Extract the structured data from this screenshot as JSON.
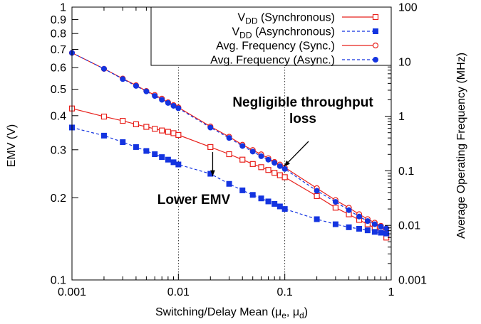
{
  "chart_data": {
    "type": "line",
    "xlabel": "Switching/Delay Mean (μe, μd)",
    "ylabel": "EMV (V)",
    "y2label": "Average Operating Frequency (MHz)",
    "x_scale": "log",
    "y_scale": "log",
    "y2_scale": "log",
    "xlim": [
      0.001,
      1
    ],
    "ylim": [
      0.1,
      1
    ],
    "y2lim": [
      0.001,
      100
    ],
    "x_ticks": [
      "0.001",
      "0.01",
      "0.1",
      "1"
    ],
    "y_ticks": [
      "0.1",
      "0.2",
      "0.3",
      "0.4",
      "0.5",
      "0.6",
      "0.7",
      "0.8",
      "0.9",
      "1"
    ],
    "y2_ticks": [
      "0.001",
      "0.01",
      "0.1",
      "1",
      "10",
      "100"
    ],
    "grid": "vertical dotted lines at 0.01 and 0.1",
    "legend_position": "top-right",
    "series": [
      {
        "name": "VDD (Synchronous)",
        "axis": "left",
        "color": "#e8211c",
        "marker": "open-square",
        "line": "solid",
        "x": [
          0.001,
          0.002,
          0.003,
          0.004,
          0.005,
          0.006,
          0.007,
          0.008,
          0.009,
          0.01,
          0.02,
          0.03,
          0.04,
          0.05,
          0.06,
          0.07,
          0.08,
          0.09,
          0.1,
          0.2,
          0.3,
          0.4,
          0.5,
          0.6,
          0.7,
          0.8,
          0.9
        ],
        "values": [
          0.425,
          0.397,
          0.383,
          0.372,
          0.364,
          0.358,
          0.353,
          0.349,
          0.345,
          0.34,
          0.307,
          0.289,
          0.276,
          0.266,
          0.259,
          0.253,
          0.247,
          0.242,
          0.238,
          0.203,
          0.184,
          0.174,
          0.166,
          0.16,
          0.155,
          0.151,
          0.143
        ]
      },
      {
        "name": "VDD (Asynchronous)",
        "axis": "left",
        "color": "#1434e0",
        "marker": "filled-square",
        "line": "dashed",
        "x": [
          0.001,
          0.002,
          0.003,
          0.004,
          0.005,
          0.006,
          0.007,
          0.008,
          0.009,
          0.01,
          0.02,
          0.03,
          0.04,
          0.05,
          0.06,
          0.07,
          0.08,
          0.09,
          0.1,
          0.2,
          0.3,
          0.4,
          0.5,
          0.6,
          0.7,
          0.8,
          0.9
        ],
        "values": [
          0.362,
          0.338,
          0.32,
          0.307,
          0.297,
          0.289,
          0.282,
          0.276,
          0.27,
          0.265,
          0.245,
          0.225,
          0.213,
          0.205,
          0.199,
          0.194,
          0.19,
          0.186,
          0.182,
          0.167,
          0.16,
          0.156,
          0.154,
          0.152,
          0.15,
          0.149,
          0.148
        ]
      },
      {
        "name": "Avg. Frequency (Sync.)",
        "axis": "right",
        "color": "#e8211c",
        "marker": "open-circle",
        "line": "solid",
        "x": [
          0.001,
          0.002,
          0.003,
          0.004,
          0.005,
          0.006,
          0.007,
          0.008,
          0.009,
          0.01,
          0.02,
          0.03,
          0.04,
          0.05,
          0.06,
          0.07,
          0.08,
          0.09,
          0.1,
          0.2,
          0.3,
          0.4,
          0.5,
          0.6,
          0.7,
          0.8,
          0.9
        ],
        "values": [
          14.5,
          7.4,
          4.9,
          3.7,
          2.9,
          2.45,
          2.1,
          1.8,
          1.6,
          1.45,
          0.65,
          0.42,
          0.3,
          0.24,
          0.2,
          0.17,
          0.145,
          0.13,
          0.115,
          0.048,
          0.029,
          0.021,
          0.016,
          0.013,
          0.0112,
          0.0098,
          0.0088
        ]
      },
      {
        "name": "Avg. Frequency (Async.)",
        "axis": "right",
        "color": "#1434e0",
        "marker": "filled-circle",
        "line": "dashed",
        "x": [
          0.001,
          0.002,
          0.003,
          0.004,
          0.005,
          0.006,
          0.007,
          0.008,
          0.009,
          0.01,
          0.02,
          0.03,
          0.04,
          0.05,
          0.06,
          0.07,
          0.08,
          0.09,
          0.1,
          0.2,
          0.3,
          0.4,
          0.5,
          0.6,
          0.7,
          0.8,
          0.9
        ],
        "values": [
          14.5,
          7.4,
          4.8,
          3.6,
          2.85,
          2.35,
          2.0,
          1.75,
          1.55,
          1.4,
          0.62,
          0.4,
          0.285,
          0.225,
          0.185,
          0.16,
          0.14,
          0.122,
          0.108,
          0.043,
          0.027,
          0.019,
          0.0145,
          0.012,
          0.0105,
          0.0095,
          0.0088
        ]
      }
    ],
    "annotations": [
      {
        "text": "Negligible throughput loss",
        "points_to": {
          "x": 0.1,
          "y2": 0.11
        }
      },
      {
        "text": "Lower EMV",
        "points_to": {
          "x": 0.021,
          "y": 0.24
        }
      }
    ]
  }
}
